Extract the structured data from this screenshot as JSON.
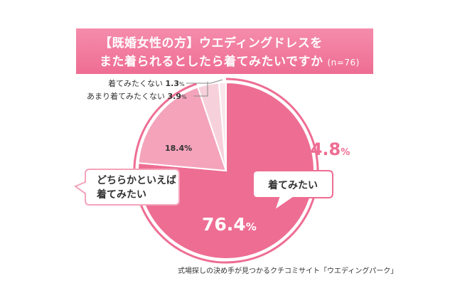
{
  "title_line1": "【既婚女性の方】ウエディングドレスを",
  "title_line2": "また着られるとしたら着てみたいですか",
  "sample_note": "(n=76)",
  "total_label": "94.8",
  "total_unit": "%",
  "source": "式場探しの決め手が見つかるクチコミサイト「ウエディングパーク」",
  "colors": {
    "accent": "#ee6d93",
    "slice_main": "#ee6d93",
    "slice_second": "#f4a3bb",
    "slice_third": "#f6d1dc",
    "slice_fourth": "#fae6ec"
  },
  "chart_data": {
    "type": "pie",
    "title": "【既婚女性の方】ウエディングドレスを また着られるとしたら着てみたいですか",
    "slices": [
      {
        "label": "着てみたい",
        "value": 76.4,
        "value_label": "76.4",
        "unit": "%"
      },
      {
        "label": "どちらかといえば着てみたい",
        "label_line1": "どちらかといえば",
        "label_line2": "着てみたい",
        "value": 18.4,
        "value_label": "18.4",
        "unit": "%"
      },
      {
        "label": "あまり着てみたくない",
        "value": 3.9,
        "value_label": "3.9",
        "unit": "%"
      },
      {
        "label": "着てみたくない",
        "value": 1.3,
        "value_label": "1.3",
        "unit": "%"
      }
    ],
    "combined_total": {
      "value": 94.8,
      "components": [
        "着てみたい",
        "どちらかといえば着てみたい"
      ]
    }
  }
}
